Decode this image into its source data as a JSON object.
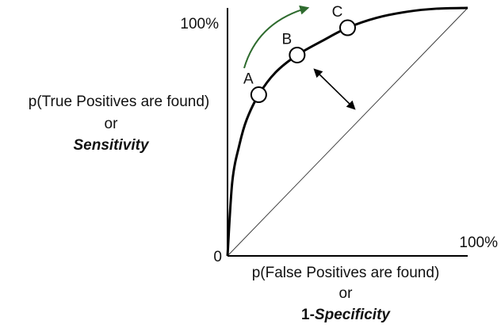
{
  "chart_data": {
    "type": "line",
    "x_axis": {
      "start_label": "0",
      "end_label": "100%",
      "label_line1": "p(False Positives are found)",
      "label_line2": "or",
      "label_line3_prefix": "1-",
      "label_line3_emph": "Specificity"
    },
    "y_axis": {
      "top_label": "100%",
      "label_line1": "p(True Positives are found)",
      "label_line2": "or",
      "label_line3_emph": "Sensitivity"
    },
    "points": [
      {
        "label": "A",
        "x": 0.13,
        "y": 0.65
      },
      {
        "label": "B",
        "x": 0.29,
        "y": 0.81
      },
      {
        "label": "C",
        "x": 0.5,
        "y": 0.92
      }
    ],
    "curve": {
      "x": [
        0,
        0.02,
        0.05,
        0.08,
        0.13,
        0.2,
        0.29,
        0.4,
        0.5,
        0.62,
        0.75,
        0.87,
        1.0
      ],
      "y": [
        0,
        0.3,
        0.45,
        0.55,
        0.65,
        0.74,
        0.81,
        0.87,
        0.92,
        0.96,
        0.985,
        0.997,
        1.0
      ]
    },
    "diagonal": {
      "x": [
        0,
        1
      ],
      "y": [
        0,
        1
      ]
    },
    "colors": {
      "curve": "#000000",
      "arrow_green": "#2e6b2e",
      "diagonal": "#333333"
    }
  }
}
